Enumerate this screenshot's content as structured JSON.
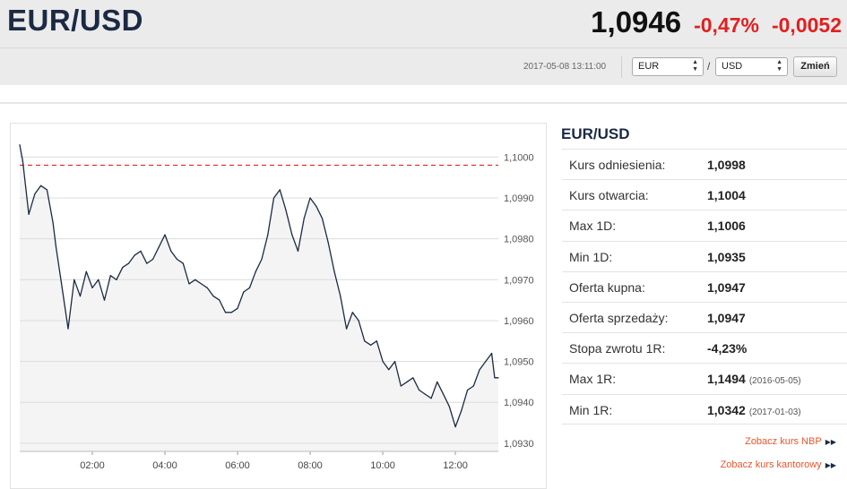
{
  "header": {
    "pair": "EUR/USD",
    "price": "1,0946",
    "change_pct": "-0,47%",
    "change_abs": "-0,0052",
    "change_color": "#e02020"
  },
  "toolbar": {
    "timestamp": "2017-05-08 13:11:00",
    "from_currency": "EUR",
    "to_currency": "USD",
    "separator": "/",
    "change_button": "Zmień"
  },
  "chart_data": {
    "type": "line",
    "title": "",
    "xlabel": "",
    "ylabel": "",
    "x_ticks": [
      "02:00",
      "04:00",
      "06:00",
      "08:00",
      "10:00",
      "12:00"
    ],
    "y_ticks": [
      "1,1000",
      "1,0990",
      "1,0980",
      "1,0970",
      "1,0960",
      "1,0950",
      "1,0940",
      "1,0930"
    ],
    "ylim": [
      1.0928,
      1.1006
    ],
    "xlim": [
      "00:00",
      "13:11"
    ],
    "reference_line": {
      "value": 1.0998,
      "style": "dashed",
      "color": "#e03030"
    },
    "grid": "horizontal",
    "series": [
      {
        "line_color": "#1b2a44",
        "area_color": "#f4f4f4",
        "x": [
          "00:00",
          "00:05",
          "00:15",
          "00:25",
          "00:35",
          "00:45",
          "00:55",
          "01:00",
          "01:10",
          "01:20",
          "01:30",
          "01:40",
          "01:50",
          "02:00",
          "02:10",
          "02:20",
          "02:30",
          "02:40",
          "02:50",
          "03:00",
          "03:10",
          "03:20",
          "03:30",
          "03:40",
          "03:50",
          "04:00",
          "04:10",
          "04:20",
          "04:30",
          "04:40",
          "04:50",
          "05:00",
          "05:10",
          "05:20",
          "05:30",
          "05:40",
          "05:50",
          "06:00",
          "06:10",
          "06:20",
          "06:30",
          "06:40",
          "06:50",
          "07:00",
          "07:10",
          "07:20",
          "07:30",
          "07:40",
          "07:50",
          "08:00",
          "08:10",
          "08:20",
          "08:30",
          "08:40",
          "08:50",
          "09:00",
          "09:10",
          "09:20",
          "09:30",
          "09:40",
          "09:50",
          "10:00",
          "10:10",
          "10:20",
          "10:30",
          "10:40",
          "10:50",
          "11:00",
          "11:10",
          "11:20",
          "11:30",
          "11:40",
          "11:50",
          "12:00",
          "12:10",
          "12:20",
          "12:30",
          "12:40",
          "12:50",
          "13:00",
          "13:05",
          "13:11"
        ],
        "y": [
          1.1003,
          1.0999,
          1.0986,
          1.0991,
          1.0993,
          1.0992,
          1.0984,
          1.0978,
          1.0968,
          1.0958,
          1.097,
          1.0966,
          1.0972,
          1.0968,
          1.097,
          1.0965,
          1.0971,
          1.097,
          1.0973,
          1.0974,
          1.0976,
          1.0977,
          1.0974,
          1.0975,
          1.0978,
          1.0981,
          1.0977,
          1.0975,
          1.0974,
          1.0969,
          1.097,
          1.0969,
          1.0968,
          1.0966,
          1.0965,
          1.0962,
          1.0962,
          1.0963,
          1.0967,
          1.0968,
          1.0972,
          1.0975,
          1.0981,
          1.099,
          1.0992,
          1.0987,
          1.0981,
          1.0977,
          1.0985,
          1.099,
          1.0988,
          1.0985,
          1.0979,
          1.0972,
          1.0966,
          1.0958,
          1.0962,
          1.096,
          1.0955,
          1.0954,
          1.0955,
          1.095,
          1.0948,
          1.095,
          1.0944,
          1.0945,
          1.0946,
          1.0943,
          1.0942,
          1.0941,
          1.0945,
          1.0942,
          1.0939,
          1.0934,
          1.0938,
          1.0943,
          1.0944,
          1.0948,
          1.095,
          1.0952,
          1.0946,
          1.0946
        ]
      }
    ]
  },
  "side": {
    "title": "EUR/USD",
    "rows": [
      {
        "label": "Kurs odniesienia:",
        "value": "1,0998",
        "date": ""
      },
      {
        "label": "Kurs otwarcia:",
        "value": "1,1004",
        "date": ""
      },
      {
        "label": "Max 1D:",
        "value": "1,1006",
        "date": ""
      },
      {
        "label": "Min 1D:",
        "value": "1,0935",
        "date": ""
      },
      {
        "label": "Oferta kupna:",
        "value": "1,0947",
        "date": ""
      },
      {
        "label": "Oferta sprzedaży:",
        "value": "1,0947",
        "date": ""
      },
      {
        "label": "Stopa zwrotu 1R:",
        "value": "-4,23%",
        "date": ""
      },
      {
        "label": "Max 1R:",
        "value": "1,1494",
        "date": "(2016-05-05)"
      },
      {
        "label": "Min 1R:",
        "value": "1,0342",
        "date": "(2017-01-03)"
      }
    ]
  },
  "links": {
    "nbp": "Zobacz kurs NBP",
    "kantor": "Zobacz kurs kantorowy",
    "arrow_icon": "double-chevron-right-icon"
  }
}
